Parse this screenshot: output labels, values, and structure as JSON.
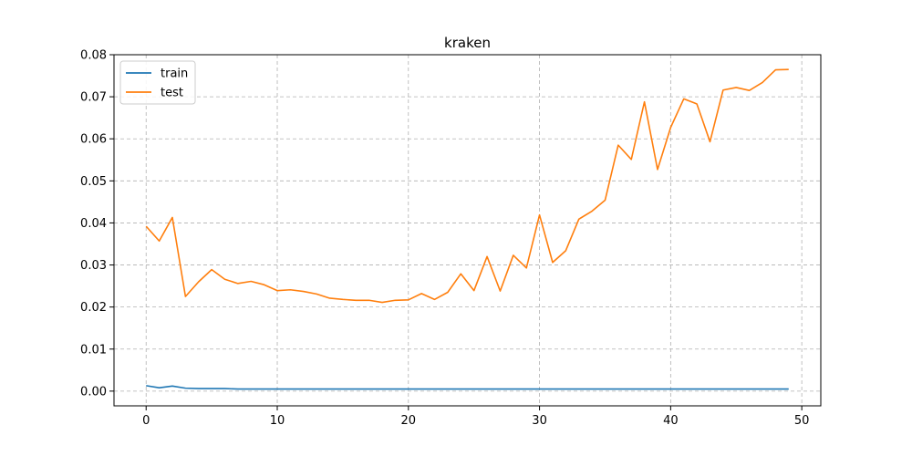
{
  "chart_data": {
    "type": "line",
    "title": "kraken",
    "xlabel": "",
    "ylabel": "",
    "xlim": [
      -2.45,
      51.45
    ],
    "ylim": [
      -0.0035,
      0.08
    ],
    "x_ticks": [
      0,
      10,
      20,
      30,
      40,
      50
    ],
    "y_ticks": [
      0.0,
      0.01,
      0.02,
      0.03,
      0.04,
      0.05,
      0.06,
      0.07,
      0.08
    ],
    "y_tick_labels": [
      "0.00",
      "0.01",
      "0.02",
      "0.03",
      "0.04",
      "0.05",
      "0.06",
      "0.07",
      "0.08"
    ],
    "grid": true,
    "legend_position": "upper left",
    "x": [
      0,
      1,
      2,
      3,
      4,
      5,
      6,
      7,
      8,
      9,
      10,
      11,
      12,
      13,
      14,
      15,
      16,
      17,
      18,
      19,
      20,
      21,
      22,
      23,
      24,
      25,
      26,
      27,
      28,
      29,
      30,
      31,
      32,
      33,
      34,
      35,
      36,
      37,
      38,
      39,
      40,
      41,
      42,
      43,
      44,
      45,
      46,
      47,
      48,
      49
    ],
    "series": [
      {
        "name": "train",
        "color": "#1f77b4",
        "values": [
          0.0013,
          0.0008,
          0.0012,
          0.0007,
          0.0006,
          0.0006,
          0.0006,
          0.0005,
          0.0005,
          0.0005,
          0.0005,
          0.0005,
          0.0005,
          0.0005,
          0.0005,
          0.0005,
          0.0005,
          0.0005,
          0.0005,
          0.0005,
          0.0005,
          0.0005,
          0.0005,
          0.0005,
          0.0005,
          0.0005,
          0.0005,
          0.0005,
          0.0005,
          0.0005,
          0.0005,
          0.0005,
          0.0005,
          0.0005,
          0.0005,
          0.0005,
          0.0005,
          0.0005,
          0.0005,
          0.0005,
          0.0005,
          0.0005,
          0.0005,
          0.0005,
          0.0005,
          0.0005,
          0.0005,
          0.0005,
          0.0005,
          0.0005
        ]
      },
      {
        "name": "test",
        "color": "#ff7f0e",
        "values": [
          0.0392,
          0.0357,
          0.0413,
          0.0225,
          0.026,
          0.0289,
          0.0266,
          0.0256,
          0.0261,
          0.0253,
          0.0239,
          0.0241,
          0.0237,
          0.0231,
          0.0221,
          0.0218,
          0.0216,
          0.0216,
          0.0211,
          0.0216,
          0.0217,
          0.0232,
          0.0218,
          0.0235,
          0.0279,
          0.0239,
          0.032,
          0.0238,
          0.0323,
          0.0293,
          0.0419,
          0.0306,
          0.0334,
          0.0409,
          0.0428,
          0.0454,
          0.0585,
          0.0551,
          0.0688,
          0.0527,
          0.0627,
          0.0695,
          0.0683,
          0.0593,
          0.0716,
          0.0722,
          0.0715,
          0.0734,
          0.0764,
          0.0765
        ]
      }
    ]
  }
}
